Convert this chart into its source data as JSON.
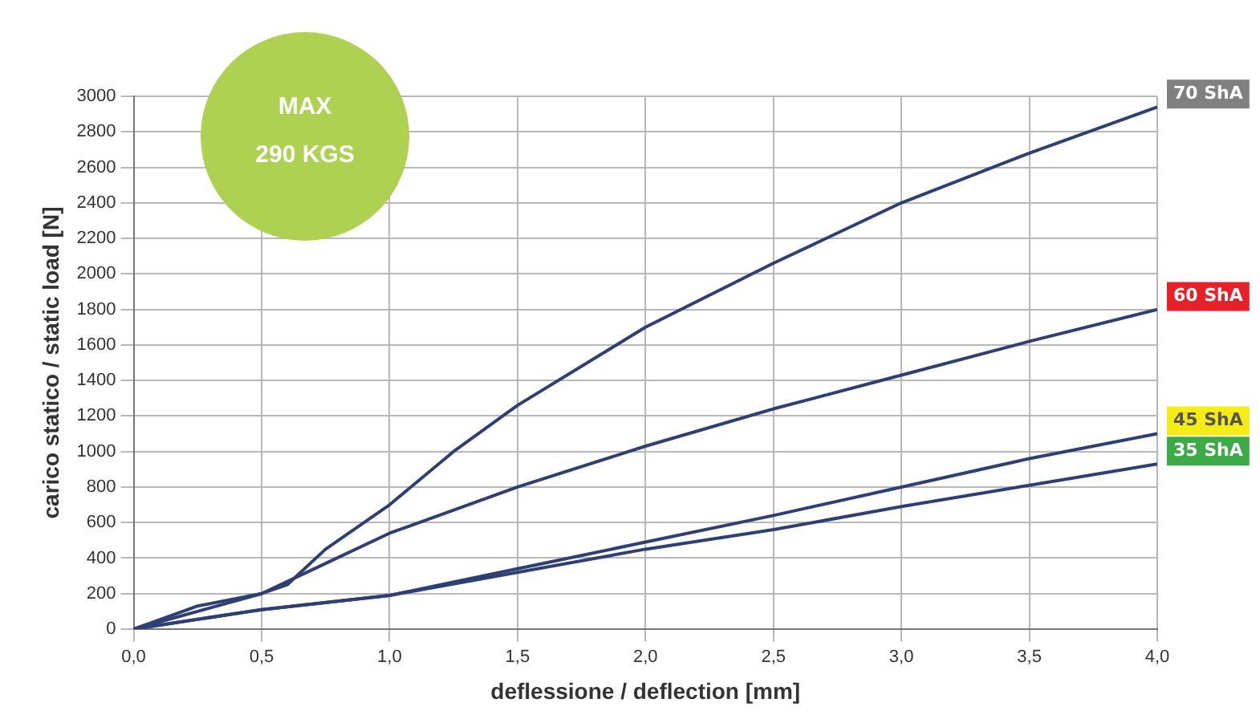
{
  "chart_data": {
    "type": "line",
    "xlabel": "deflessione / deflection [mm]",
    "ylabel": "carico statico / static load [N]",
    "annotations": [
      "MAX 290 KGS"
    ],
    "series": [
      {
        "name": "70 ShA",
        "color": "#2e3f74",
        "x": [
          0,
          0.25,
          0.5,
          0.6,
          0.75,
          1.0,
          1.25,
          1.5,
          2.0,
          2.5,
          3.0,
          3.5,
          4.0
        ],
        "values": [
          0,
          130,
          200,
          250,
          450,
          700,
          1000,
          1260,
          1700,
          2060,
          2400,
          2680,
          2940
        ]
      },
      {
        "name": "60 ShA",
        "color": "#2e3f74",
        "x": [
          0,
          0.25,
          0.5,
          0.75,
          1.0,
          1.5,
          2.0,
          2.5,
          3.0,
          3.5,
          4.0
        ],
        "values": [
          0,
          100,
          200,
          370,
          540,
          800,
          1030,
          1240,
          1430,
          1620,
          1800
        ]
      },
      {
        "name": "45 ShA",
        "color": "#2e3f74",
        "x": [
          0,
          0.5,
          1.0,
          1.5,
          2.0,
          2.5,
          3.0,
          3.5,
          4.0
        ],
        "values": [
          0,
          110,
          190,
          340,
          490,
          640,
          800,
          960,
          1100
        ]
      },
      {
        "name": "35 ShA",
        "color": "#2e3f74",
        "x": [
          0,
          0.5,
          1.0,
          1.5,
          2.0,
          2.5,
          3.0,
          3.5,
          4.0
        ],
        "values": [
          0,
          110,
          190,
          320,
          450,
          560,
          690,
          810,
          930
        ]
      }
    ],
    "xlim": [
      0,
      4
    ],
    "xticks": [
      {
        "value": 0,
        "label": "0,0"
      },
      {
        "value": 0.5,
        "label": "0,5"
      },
      {
        "value": 1,
        "label": "1,0"
      },
      {
        "value": 1.5,
        "label": "1,5"
      },
      {
        "value": 2,
        "label": "2,0"
      },
      {
        "value": 2.5,
        "label": "2,5"
      },
      {
        "value": 3,
        "label": "3,0"
      },
      {
        "value": 3.5,
        "label": "3,5"
      },
      {
        "value": 4,
        "label": "4,0"
      }
    ],
    "ylim": [
      0,
      3000
    ],
    "yticks": [
      0,
      200,
      400,
      600,
      800,
      1000,
      1200,
      1400,
      1600,
      1800,
      2000,
      2200,
      2400,
      2600,
      2800,
      3000
    ],
    "grid": true,
    "legend": "right",
    "marker": "none",
    "line_style": "solid"
  }
}
